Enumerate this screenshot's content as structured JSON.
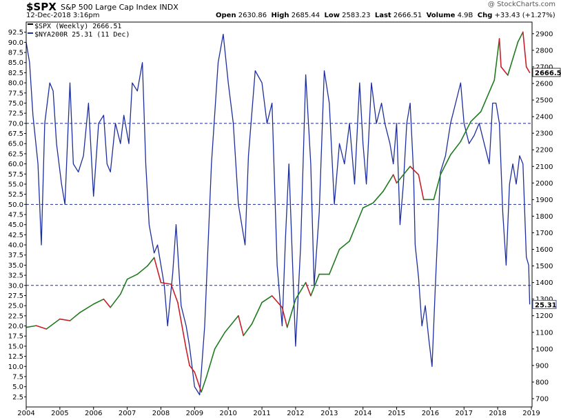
{
  "header": {
    "symbol": "$SPX",
    "name": "S&P 500 Large Cap Index",
    "exchange": "INDX",
    "datetime": "12-Dec-2018 3:16pm",
    "brand": "@ StockCharts.com",
    "open_label": "Open",
    "open": "2630.86",
    "high_label": "High",
    "high": "2685.44",
    "low_label": "Low",
    "low": "2583.23",
    "last_label": "Last",
    "last": "2666.51",
    "volume_label": "Volume",
    "volume": "4.9B",
    "chg_label": "Chg",
    "chg": "+33.43 (+1.27%)"
  },
  "colors": {
    "breadth": "#1c2d9c",
    "price_up": "#1f7a1f",
    "price_down": "#c81e28",
    "reference": "#1a2a9a"
  },
  "chart_data": {
    "type": "line",
    "legend": [
      "$SPX (Weekly) 2666.51",
      "$NYA200R 25.31 (11 Dec)"
    ],
    "x_ticks": [
      "2004",
      "2005",
      "2006",
      "2007",
      "2008",
      "2009",
      "2010",
      "2011",
      "2012",
      "2013",
      "2014",
      "2015",
      "2016",
      "2017",
      "2018",
      "2019"
    ],
    "left_axis": {
      "ylim": [
        0,
        95
      ],
      "ticks": [
        2.5,
        5,
        7.5,
        10,
        12.5,
        15,
        17.5,
        20,
        22.5,
        25,
        27.5,
        30,
        32.5,
        35,
        37.5,
        40,
        42.5,
        45,
        47.5,
        50,
        52.5,
        55,
        57.5,
        60,
        62.5,
        65,
        67.5,
        70,
        72.5,
        75,
        77.5,
        80,
        82.5,
        85,
        87.5,
        90,
        92.5
      ]
    },
    "right_axis": {
      "ylim": [
        650,
        2970
      ],
      "ticks": [
        700,
        800,
        900,
        1000,
        1100,
        1200,
        1300,
        1400,
        1500,
        1600,
        1700,
        1800,
        1900,
        2000,
        2100,
        2200,
        2300,
        2400,
        2500,
        2600,
        2700,
        2800,
        2900
      ]
    },
    "reference_lines": [
      70,
      50,
      30
    ],
    "last_labels": {
      "spx": "2666.51",
      "breadth": "25.31"
    },
    "series": [
      {
        "name": "$SPX (Weekly)",
        "axis": "right",
        "x": [
          2004.0,
          2004.3,
          2004.6,
          2005.0,
          2005.3,
          2005.6,
          2006.0,
          2006.3,
          2006.5,
          2006.8,
          2007.0,
          2007.3,
          2007.6,
          2007.8,
          2008.0,
          2008.3,
          2008.5,
          2008.75,
          2008.85,
          2009.0,
          2009.2,
          2009.35,
          2009.6,
          2009.9,
          2010.3,
          2010.45,
          2010.7,
          2011.0,
          2011.3,
          2011.6,
          2011.75,
          2012.0,
          2012.3,
          2012.45,
          2012.7,
          2013.0,
          2013.3,
          2013.6,
          2014.0,
          2014.3,
          2014.6,
          2014.9,
          2015.0,
          2015.4,
          2015.65,
          2015.8,
          2016.1,
          2016.3,
          2016.6,
          2016.9,
          2017.2,
          2017.5,
          2017.9,
          2018.05,
          2018.1,
          2018.3,
          2018.6,
          2018.75,
          2018.85,
          2018.95
        ],
        "values": [
          1130,
          1140,
          1120,
          1180,
          1170,
          1220,
          1270,
          1300,
          1250,
          1330,
          1420,
          1450,
          1500,
          1550,
          1400,
          1390,
          1280,
          1000,
          900,
          860,
          740,
          830,
          1000,
          1100,
          1200,
          1080,
          1150,
          1280,
          1320,
          1250,
          1130,
          1300,
          1400,
          1320,
          1450,
          1450,
          1600,
          1650,
          1850,
          1880,
          1950,
          2050,
          2000,
          2100,
          2050,
          1900,
          1900,
          2050,
          2170,
          2250,
          2370,
          2430,
          2620,
          2870,
          2700,
          2650,
          2850,
          2910,
          2700,
          2666
        ]
      },
      {
        "name": "$NYA200R",
        "axis": "left",
        "x": [
          2004.0,
          2004.1,
          2004.2,
          2004.35,
          2004.45,
          2004.55,
          2004.7,
          2004.8,
          2004.9,
          2005.05,
          2005.15,
          2005.3,
          2005.4,
          2005.55,
          2005.7,
          2005.85,
          2006.0,
          2006.15,
          2006.3,
          2006.4,
          2006.5,
          2006.65,
          2006.8,
          2006.9,
          2007.05,
          2007.15,
          2007.3,
          2007.45,
          2007.55,
          2007.65,
          2007.8,
          2007.9,
          2008.0,
          2008.1,
          2008.2,
          2008.35,
          2008.45,
          2008.6,
          2008.75,
          2008.85,
          2009.0,
          2009.15,
          2009.3,
          2009.5,
          2009.7,
          2009.85,
          2010.0,
          2010.15,
          2010.3,
          2010.5,
          2010.6,
          2010.8,
          2011.0,
          2011.15,
          2011.3,
          2011.45,
          2011.6,
          2011.7,
          2011.8,
          2012.0,
          2012.15,
          2012.3,
          2012.45,
          2012.55,
          2012.7,
          2012.85,
          2013.0,
          2013.15,
          2013.3,
          2013.45,
          2013.6,
          2013.75,
          2013.9,
          2014.0,
          2014.1,
          2014.25,
          2014.4,
          2014.55,
          2014.65,
          2014.8,
          2014.9,
          2015.0,
          2015.1,
          2015.2,
          2015.3,
          2015.4,
          2015.5,
          2015.55,
          2015.65,
          2015.75,
          2015.85,
          2015.95,
          2016.05,
          2016.15,
          2016.3,
          2016.45,
          2016.6,
          2016.75,
          2016.9,
          2017.0,
          2017.15,
          2017.3,
          2017.45,
          2017.6,
          2017.75,
          2017.85,
          2017.95,
          2018.05,
          2018.15,
          2018.25,
          2018.35,
          2018.45,
          2018.55,
          2018.65,
          2018.75,
          2018.85,
          2018.92,
          2018.95
        ],
        "values": [
          90,
          85,
          72,
          60,
          40,
          70,
          80,
          78,
          65,
          55,
          50,
          80,
          60,
          58,
          62,
          75,
          52,
          70,
          72,
          60,
          58,
          70,
          65,
          72,
          65,
          80,
          78,
          85,
          60,
          45,
          38,
          40,
          35,
          30,
          20,
          33,
          45,
          25,
          20,
          15,
          5,
          3,
          20,
          60,
          85,
          92,
          80,
          70,
          50,
          40,
          62,
          83,
          80,
          70,
          75,
          35,
          20,
          42,
          60,
          15,
          40,
          82,
          60,
          30,
          48,
          83,
          75,
          50,
          65,
          60,
          70,
          55,
          80,
          65,
          55,
          80,
          70,
          75,
          70,
          65,
          60,
          70,
          45,
          55,
          70,
          75,
          58,
          40,
          32,
          20,
          25,
          17,
          10,
          30,
          58,
          62,
          70,
          75,
          80,
          70,
          65,
          67,
          70,
          65,
          60,
          75,
          75,
          70,
          48,
          35,
          55,
          60,
          55,
          62,
          60,
          37,
          35,
          25.31
        ]
      }
    ]
  }
}
